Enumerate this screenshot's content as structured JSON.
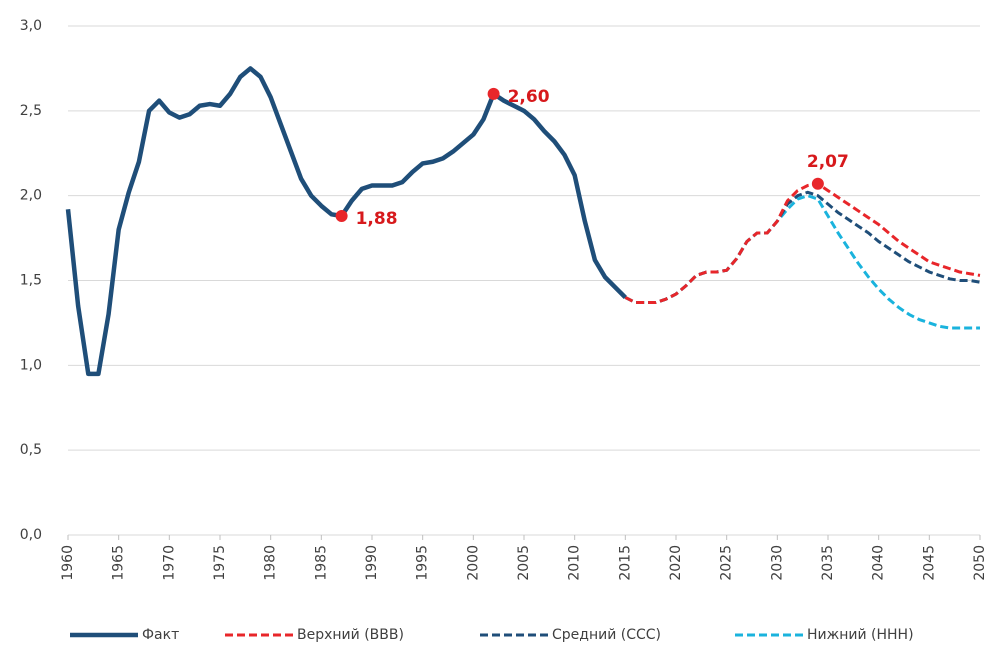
{
  "chart_data": {
    "type": "line",
    "xlim": [
      1960,
      2050
    ],
    "ylim": [
      0,
      3
    ],
    "xticks": [
      1960,
      1965,
      1970,
      1975,
      1980,
      1985,
      1990,
      1995,
      2000,
      2005,
      2010,
      2015,
      2020,
      2025,
      2030,
      2035,
      2040,
      2045,
      2050
    ],
    "yticks": [
      {
        "value": 0,
        "label": "0,0"
      },
      {
        "value": 0.5,
        "label": "0,5"
      },
      {
        "value": 1,
        "label": "1,0"
      },
      {
        "value": 1.5,
        "label": "1,5"
      },
      {
        "value": 2,
        "label": "2,0"
      },
      {
        "value": 2.5,
        "label": "2,5"
      },
      {
        "value": 3,
        "label": "3,0"
      }
    ],
    "grid": true,
    "legend": "bottom",
    "series": [
      {
        "name": "Факт",
        "color": "#1f4e79",
        "style": "solid",
        "x": [
          1960,
          1961,
          1962,
          1963,
          1964,
          1965,
          1966,
          1967,
          1968,
          1969,
          1970,
          1971,
          1972,
          1973,
          1974,
          1975,
          1976,
          1977,
          1978,
          1979,
          1980,
          1981,
          1982,
          1983,
          1984,
          1985,
          1986,
          1987,
          1988,
          1989,
          1990,
          1991,
          1992,
          1993,
          1994,
          1995,
          1996,
          1997,
          1998,
          1999,
          2000,
          2001,
          2002,
          2003,
          2004,
          2005,
          2006,
          2007,
          2008,
          2009,
          2010,
          2011,
          2012,
          2013,
          2014,
          2015
        ],
        "values": [
          1.92,
          1.35,
          0.95,
          0.95,
          1.3,
          1.8,
          2.02,
          2.2,
          2.5,
          2.56,
          2.49,
          2.46,
          2.48,
          2.53,
          2.54,
          2.53,
          2.6,
          2.7,
          2.75,
          2.7,
          2.58,
          2.42,
          2.26,
          2.1,
          2.0,
          1.94,
          1.89,
          1.88,
          1.97,
          2.04,
          2.06,
          2.06,
          2.06,
          2.08,
          2.14,
          2.19,
          2.2,
          2.22,
          2.26,
          2.31,
          2.36,
          2.45,
          2.6,
          2.56,
          2.53,
          2.5,
          2.45,
          2.38,
          2.32,
          2.24,
          2.12,
          1.85,
          1.62,
          1.52,
          1.46,
          1.4
        ]
      },
      {
        "name": "Верхний (ВВВ)",
        "color": "#e8262a",
        "style": "dashed",
        "x": [
          2015,
          2016,
          2017,
          2018,
          2019,
          2020,
          2021,
          2022,
          2023,
          2024,
          2025,
          2026,
          2027,
          2028,
          2029,
          2030,
          2031,
          2032,
          2033,
          2034,
          2035,
          2036,
          2037,
          2038,
          2039,
          2040,
          2041,
          2042,
          2043,
          2044,
          2045,
          2046,
          2047,
          2048,
          2049,
          2050
        ],
        "values": [
          1.4,
          1.37,
          1.37,
          1.37,
          1.39,
          1.42,
          1.47,
          1.53,
          1.55,
          1.55,
          1.56,
          1.63,
          1.73,
          1.78,
          1.78,
          1.85,
          1.97,
          2.03,
          2.06,
          2.07,
          2.03,
          1.99,
          1.95,
          1.91,
          1.87,
          1.83,
          1.78,
          1.73,
          1.69,
          1.65,
          1.61,
          1.59,
          1.57,
          1.55,
          1.54,
          1.53
        ]
      },
      {
        "name": "Средний (ССС)",
        "color": "#1f4e79",
        "style": "dashed",
        "x": [
          2015,
          2016,
          2017,
          2018,
          2019,
          2020,
          2021,
          2022,
          2023,
          2024,
          2025,
          2026,
          2027,
          2028,
          2029,
          2030,
          2031,
          2032,
          2033,
          2034,
          2035,
          2036,
          2037,
          2038,
          2039,
          2040,
          2041,
          2042,
          2043,
          2044,
          2045,
          2046,
          2047,
          2048,
          2049,
          2050
        ],
        "values": [
          1.4,
          1.37,
          1.37,
          1.37,
          1.39,
          1.42,
          1.47,
          1.53,
          1.55,
          1.55,
          1.56,
          1.63,
          1.73,
          1.78,
          1.78,
          1.85,
          1.95,
          2.0,
          2.02,
          2.0,
          1.95,
          1.9,
          1.86,
          1.82,
          1.78,
          1.73,
          1.69,
          1.65,
          1.61,
          1.58,
          1.55,
          1.53,
          1.51,
          1.5,
          1.5,
          1.49
        ]
      },
      {
        "name": "Нижний (ННН)",
        "color": "#1ab3dd",
        "style": "dashed",
        "x": [
          2015,
          2016,
          2017,
          2018,
          2019,
          2020,
          2021,
          2022,
          2023,
          2024,
          2025,
          2026,
          2027,
          2028,
          2029,
          2030,
          2031,
          2032,
          2033,
          2034,
          2035,
          2036,
          2037,
          2038,
          2039,
          2040,
          2041,
          2042,
          2043,
          2044,
          2045,
          2046,
          2047,
          2048,
          2049,
          2050
        ],
        "values": [
          1.4,
          1.37,
          1.37,
          1.37,
          1.39,
          1.42,
          1.47,
          1.53,
          1.55,
          1.55,
          1.56,
          1.63,
          1.73,
          1.78,
          1.78,
          1.85,
          1.92,
          1.98,
          2.0,
          1.98,
          1.88,
          1.78,
          1.69,
          1.6,
          1.52,
          1.45,
          1.39,
          1.34,
          1.3,
          1.27,
          1.25,
          1.23,
          1.22,
          1.22,
          1.22,
          1.22
        ]
      }
    ],
    "annotations": [
      {
        "x": 1987,
        "y": 1.88,
        "label": "1,88"
      },
      {
        "x": 2002,
        "y": 2.6,
        "label": "2,60"
      },
      {
        "x": 2034,
        "y": 2.07,
        "label": "2,07"
      }
    ]
  }
}
